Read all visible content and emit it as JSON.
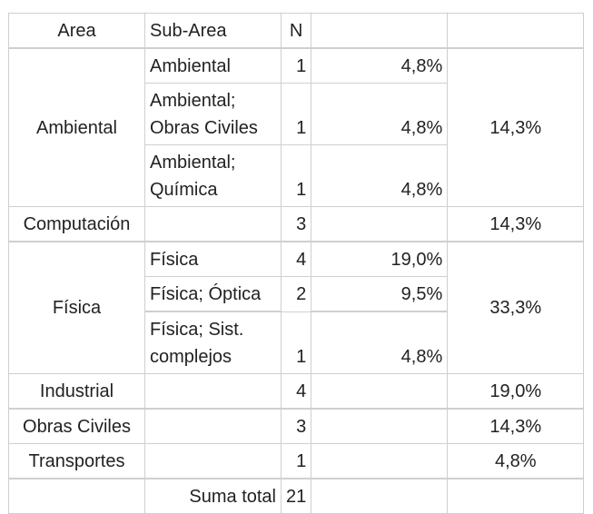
{
  "header": {
    "area": "Area",
    "subarea": "Sub-Area",
    "n": "N",
    "col4": "",
    "col5": ""
  },
  "rows": {
    "ambiental": {
      "area": "Ambiental",
      "group_pct": "14,3%",
      "sub": [
        {
          "name": "Ambiental",
          "n": "1",
          "pct": "4,8%"
        },
        {
          "name": "Ambiental; Obras Civiles",
          "n": "1",
          "pct": "4,8%"
        },
        {
          "name": "Ambiental; Química",
          "n": "1",
          "pct": "4,8%"
        }
      ]
    },
    "computacion": {
      "area": "Computación",
      "n": "3",
      "group_pct": "14,3%"
    },
    "fisica": {
      "area": "Física",
      "group_pct": "33,3%",
      "sub": [
        {
          "name": "Física",
          "n": "4",
          "pct": "19,0%"
        },
        {
          "name": "Física; Óptica",
          "n": "2",
          "pct": "9,5%"
        },
        {
          "name": "Física; Sist. complejos",
          "n": "1",
          "pct": "4,8%"
        }
      ]
    },
    "industrial": {
      "area": "Industrial",
      "n": "4",
      "group_pct": "19,0%"
    },
    "obras_civiles": {
      "area": "Obras Civiles",
      "n": "3",
      "group_pct": "14,3%"
    },
    "transportes": {
      "area": "Transportes",
      "n": "1",
      "group_pct": "4,8%"
    }
  },
  "total": {
    "label": "Suma total",
    "n": "21"
  }
}
